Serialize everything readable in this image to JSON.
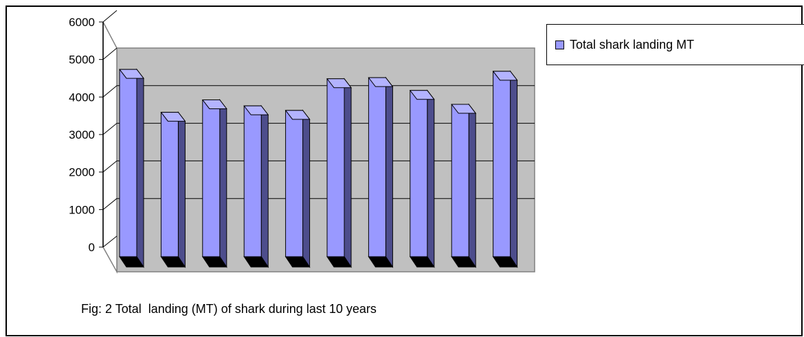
{
  "chart_data": {
    "type": "bar",
    "title": "",
    "caption": "Fig: 2 Total  landing (MT) of shark during last 10 years",
    "xlabel": "",
    "ylabel": "",
    "ylim": [
      0,
      6000
    ],
    "yticks": [
      "0",
      "1000",
      "2000",
      "3000",
      "4000",
      "5000",
      "6000"
    ],
    "grid": true,
    "legend_position": "top-right",
    "series": [
      {
        "name": "Total shark landing MT",
        "color": "#9999ff",
        "values": [
          4980,
          3840,
          4170,
          4010,
          3890,
          4730,
          4760,
          4420,
          4050,
          4930
        ]
      }
    ]
  }
}
